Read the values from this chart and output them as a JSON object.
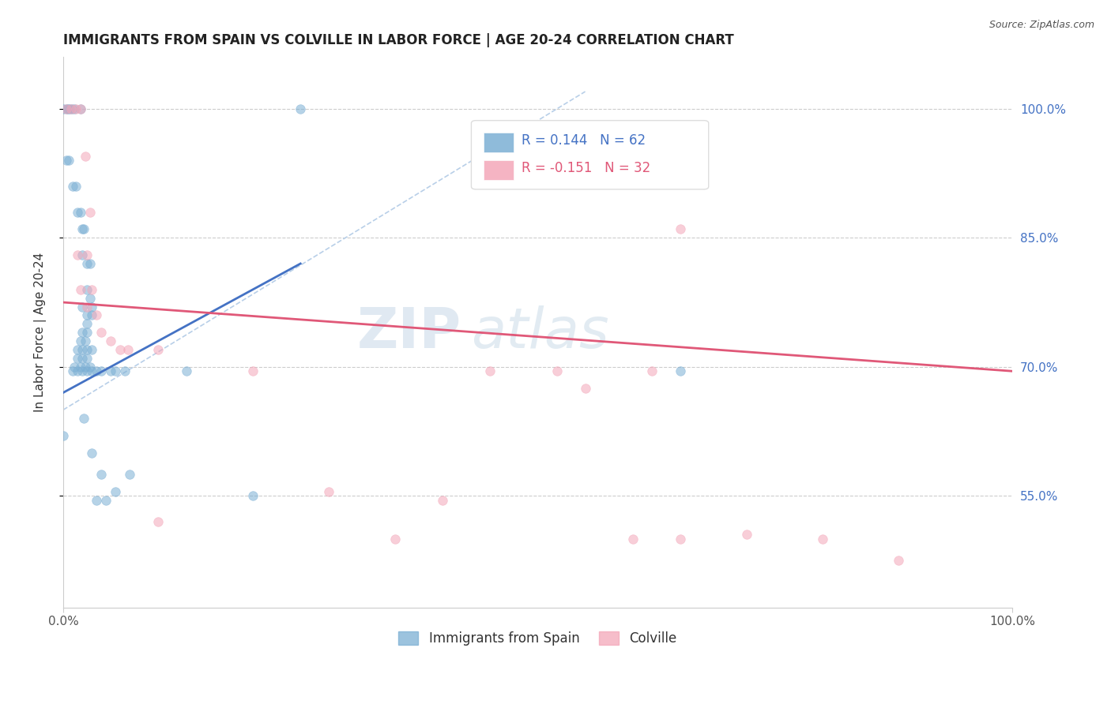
{
  "title": "IMMIGRANTS FROM SPAIN VS COLVILLE IN LABOR FORCE | AGE 20-24 CORRELATION CHART",
  "source": "Source: ZipAtlas.com",
  "ylabel": "In Labor Force | Age 20-24",
  "xlim": [
    0.0,
    1.0
  ],
  "ylim": [
    0.42,
    1.06
  ],
  "x_tick_labels": [
    "0.0%",
    "100.0%"
  ],
  "y_ticks": [
    0.55,
    0.7,
    0.85,
    1.0
  ],
  "y_tick_labels": [
    "55.0%",
    "70.0%",
    "85.0%",
    "100.0%"
  ],
  "r_blue": "0.144",
  "n_blue": "62",
  "r_pink": "-0.151",
  "n_pink": "32",
  "blue_scatter": [
    [
      0.0,
      1.0
    ],
    [
      0.003,
      1.0
    ],
    [
      0.005,
      1.0
    ],
    [
      0.007,
      1.0
    ],
    [
      0.009,
      1.0
    ],
    [
      0.012,
      1.0
    ],
    [
      0.018,
      1.0
    ],
    [
      0.003,
      0.94
    ],
    [
      0.006,
      0.94
    ],
    [
      0.01,
      0.91
    ],
    [
      0.013,
      0.91
    ],
    [
      0.015,
      0.88
    ],
    [
      0.018,
      0.88
    ],
    [
      0.02,
      0.86
    ],
    [
      0.022,
      0.86
    ],
    [
      0.02,
      0.83
    ],
    [
      0.025,
      0.82
    ],
    [
      0.028,
      0.82
    ],
    [
      0.025,
      0.79
    ],
    [
      0.028,
      0.78
    ],
    [
      0.02,
      0.77
    ],
    [
      0.025,
      0.76
    ],
    [
      0.025,
      0.75
    ],
    [
      0.03,
      0.77
    ],
    [
      0.03,
      0.76
    ],
    [
      0.02,
      0.74
    ],
    [
      0.025,
      0.74
    ],
    [
      0.018,
      0.73
    ],
    [
      0.023,
      0.73
    ],
    [
      0.015,
      0.72
    ],
    [
      0.02,
      0.72
    ],
    [
      0.025,
      0.72
    ],
    [
      0.03,
      0.72
    ],
    [
      0.015,
      0.71
    ],
    [
      0.02,
      0.71
    ],
    [
      0.025,
      0.71
    ],
    [
      0.012,
      0.7
    ],
    [
      0.018,
      0.7
    ],
    [
      0.023,
      0.7
    ],
    [
      0.028,
      0.7
    ],
    [
      0.01,
      0.695
    ],
    [
      0.015,
      0.695
    ],
    [
      0.02,
      0.695
    ],
    [
      0.025,
      0.695
    ],
    [
      0.03,
      0.695
    ],
    [
      0.035,
      0.695
    ],
    [
      0.04,
      0.695
    ],
    [
      0.05,
      0.695
    ],
    [
      0.055,
      0.695
    ],
    [
      0.065,
      0.695
    ],
    [
      0.022,
      0.64
    ],
    [
      0.03,
      0.6
    ],
    [
      0.04,
      0.575
    ],
    [
      0.07,
      0.575
    ],
    [
      0.055,
      0.555
    ],
    [
      0.035,
      0.545
    ],
    [
      0.045,
      0.545
    ],
    [
      0.2,
      0.55
    ],
    [
      0.13,
      0.695
    ],
    [
      0.25,
      1.0
    ],
    [
      0.65,
      0.695
    ],
    [
      0.0,
      0.62
    ]
  ],
  "pink_scatter": [
    [
      0.003,
      1.0
    ],
    [
      0.008,
      1.0
    ],
    [
      0.013,
      1.0
    ],
    [
      0.018,
      1.0
    ],
    [
      0.023,
      0.945
    ],
    [
      0.028,
      0.88
    ],
    [
      0.015,
      0.83
    ],
    [
      0.025,
      0.83
    ],
    [
      0.018,
      0.79
    ],
    [
      0.03,
      0.79
    ],
    [
      0.025,
      0.77
    ],
    [
      0.035,
      0.76
    ],
    [
      0.04,
      0.74
    ],
    [
      0.05,
      0.73
    ],
    [
      0.06,
      0.72
    ],
    [
      0.068,
      0.72
    ],
    [
      0.1,
      0.72
    ],
    [
      0.2,
      0.695
    ],
    [
      0.45,
      0.695
    ],
    [
      0.52,
      0.695
    ],
    [
      0.62,
      0.695
    ],
    [
      0.65,
      0.86
    ],
    [
      0.55,
      0.675
    ],
    [
      0.65,
      0.5
    ],
    [
      0.72,
      0.505
    ],
    [
      0.1,
      0.52
    ],
    [
      0.35,
      0.5
    ],
    [
      0.6,
      0.5
    ],
    [
      0.8,
      0.5
    ],
    [
      0.4,
      0.545
    ],
    [
      0.28,
      0.555
    ],
    [
      0.88,
      0.475
    ]
  ],
  "blue_line": {
    "x": [
      0.0,
      0.25
    ],
    "y": [
      0.67,
      0.82
    ]
  },
  "pink_line": {
    "x": [
      0.0,
      1.0
    ],
    "y": [
      0.775,
      0.695
    ]
  },
  "diagonal_line": {
    "x": [
      0.0,
      0.55
    ],
    "y": [
      0.65,
      1.02
    ]
  },
  "watermark_zip": "ZIP",
  "watermark_atlas": "atlas",
  "marker_size": 70,
  "alpha": 0.55,
  "blue_color": "#7bafd4",
  "pink_color": "#f4a7b9",
  "blue_line_color": "#4472c4",
  "pink_line_color": "#e05878",
  "diagonal_color": "#b8cfe8",
  "grid_color": "#cccccc",
  "title_color": "#222222",
  "axis_label_color": "#4472c4",
  "background_color": "#ffffff"
}
